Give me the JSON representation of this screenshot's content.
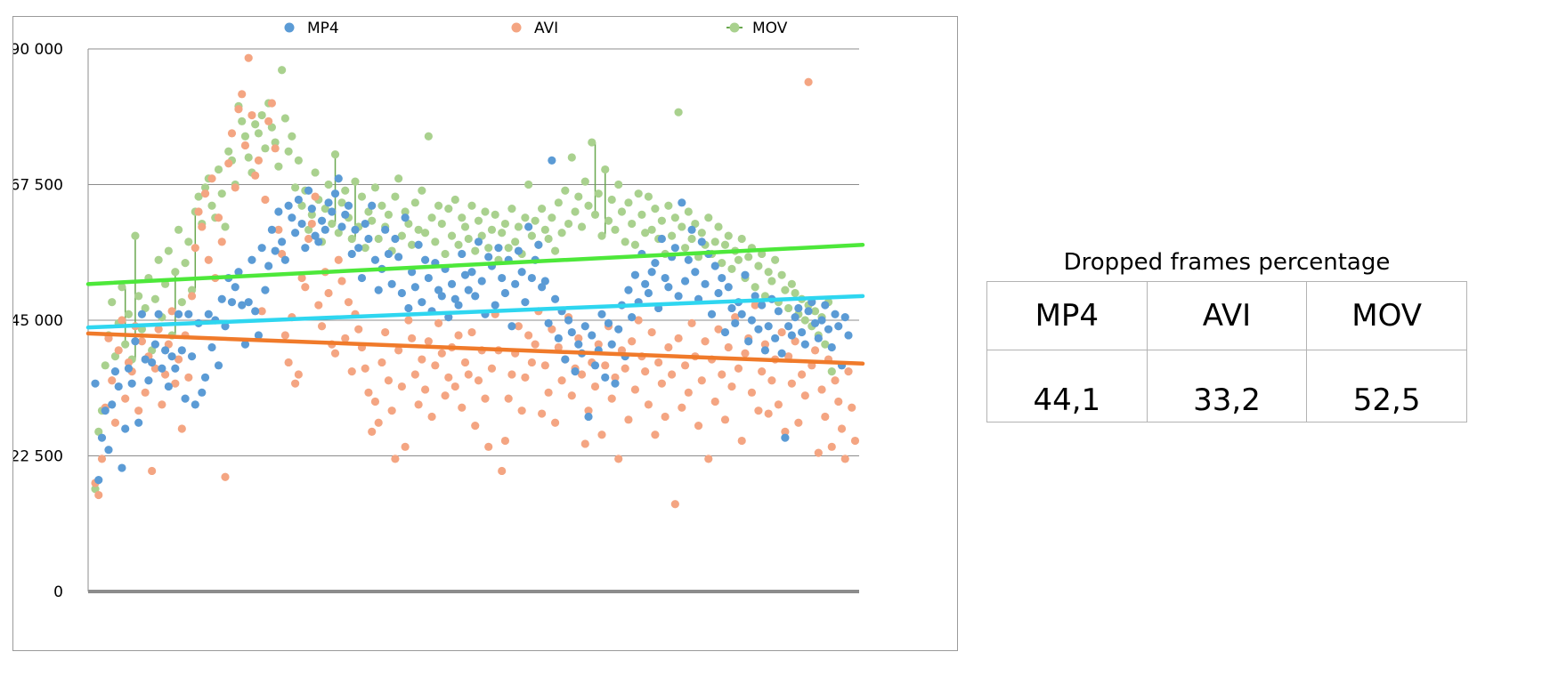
{
  "chart_data": {
    "type": "scatter",
    "title": "",
    "xlabel": "",
    "ylabel": "",
    "ylim": [
      0,
      90000
    ],
    "yticks": [
      0,
      22500,
      45000,
      67500,
      90000
    ],
    "ytick_labels": [
      "0",
      "22 500",
      "45 000",
      "67 500",
      "90 000"
    ],
    "grid": true,
    "legend_position": "top",
    "series": [
      {
        "name": "MP4",
        "color": "#5b9bd5",
        "trend_color": "#2ed6f0",
        "trend": [
          43800,
          49000
        ],
        "marker": "dot",
        "values": [
          34500,
          18500,
          25500,
          30000,
          23500,
          31000,
          36500,
          34000,
          20500,
          27000,
          37000,
          34500,
          41500,
          28000,
          46000,
          38500,
          35000,
          38000,
          41000,
          46000,
          37000,
          40000,
          34000,
          39000,
          37000,
          46000,
          40000,
          32000,
          46000,
          39000,
          31000,
          44500,
          33000,
          35500,
          46000,
          40500,
          45000,
          37500,
          48500,
          44000,
          52000,
          48000,
          50500,
          53000,
          47500,
          41000,
          48000,
          55000,
          46500,
          42500,
          57000,
          50000,
          54000,
          60000,
          56500,
          63000,
          58000,
          55000,
          64000,
          62000,
          59500,
          65000,
          61000,
          57000,
          66500,
          63500,
          59000,
          58000,
          61500,
          60000,
          64500,
          63000,
          66000,
          68500,
          60500,
          62500,
          64000,
          56000,
          60000,
          57000,
          52000,
          61000,
          58500,
          64000,
          55000,
          50000,
          53500,
          60000,
          56000,
          51000,
          58500,
          55500,
          49500,
          62000,
          47000,
          53000,
          50500,
          57500,
          48000,
          55000,
          52000,
          46500,
          54500,
          50000,
          49000,
          53500,
          45500,
          51000,
          48500,
          47500,
          56000,
          52500,
          50000,
          53000,
          49000,
          58000,
          51500,
          46000,
          55500,
          54000,
          47500,
          57000,
          52000,
          49500,
          55000,
          44000,
          51000,
          56500,
          53000,
          48000,
          60500,
          52000,
          55000,
          57500,
          50500,
          51500,
          44500,
          71500,
          48500,
          42000,
          46500,
          38500,
          45000,
          43000,
          36500,
          41000,
          39500,
          44000,
          29000,
          42500,
          37500,
          40000,
          46000,
          35500,
          44500,
          41000,
          34500,
          43500,
          47500,
          39000,
          50000,
          45500,
          52500,
          48000,
          56000,
          51000,
          49500,
          53000,
          54500,
          47000,
          58500,
          52000,
          50500,
          55500,
          57000,
          49000,
          64500,
          51500,
          55000,
          60000,
          53000,
          48500,
          58000,
          51000,
          56000,
          46000,
          54000,
          49500,
          52000,
          43000,
          50500,
          47000,
          44500,
          48000,
          46000,
          52500,
          41500,
          45000,
          49000,
          43500,
          47500,
          40000,
          44000,
          48500,
          42000,
          46500,
          39500,
          25500,
          44000,
          42500,
          45500,
          47000,
          43000,
          41000,
          46500,
          48000,
          44500,
          42000,
          45000,
          47500,
          43500,
          40500,
          46000,
          44000,
          37500,
          45500,
          42500
        ]
      },
      {
        "name": "AVI",
        "color": "#f4a582",
        "trend_color": "#f07a2a",
        "trend": [
          42800,
          37800
        ],
        "marker": "dot",
        "values": [
          18000,
          16000,
          22000,
          30500,
          42000,
          35000,
          28000,
          40000,
          45000,
          32000,
          38000,
          36500,
          44000,
          30000,
          41500,
          33000,
          39000,
          20000,
          37000,
          43500,
          31000,
          36000,
          41000,
          46500,
          34500,
          38500,
          27000,
          42500,
          35500,
          49000,
          57000,
          63000,
          60500,
          66000,
          55000,
          68500,
          52000,
          62000,
          58000,
          19000,
          71000,
          76000,
          67000,
          80000,
          82500,
          74000,
          88500,
          79000,
          69000,
          71500,
          46500,
          65000,
          78000,
          81000,
          73500,
          60000,
          56000,
          42500,
          38000,
          45500,
          34500,
          36000,
          52000,
          50500,
          58500,
          61000,
          65500,
          47500,
          44000,
          53000,
          49500,
          41000,
          39500,
          55000,
          51500,
          42000,
          48000,
          36500,
          46000,
          43500,
          40500,
          37000,
          33000,
          26500,
          31500,
          28000,
          38000,
          43000,
          35000,
          30000,
          22000,
          40000,
          34000,
          24000,
          45000,
          42000,
          36000,
          31000,
          38500,
          33500,
          41500,
          29000,
          37500,
          44500,
          39500,
          32500,
          35500,
          40500,
          34000,
          42500,
          30500,
          38000,
          36000,
          43000,
          27500,
          35000,
          40000,
          32000,
          24000,
          37000,
          46000,
          40000,
          20000,
          25000,
          32000,
          36000,
          39500,
          44000,
          30000,
          35500,
          42500,
          38000,
          41000,
          46500,
          29500,
          37500,
          33000,
          43500,
          28000,
          40500,
          35000,
          38500,
          45500,
          32500,
          37000,
          42000,
          36000,
          24500,
          30000,
          38000,
          34000,
          41000,
          26000,
          37500,
          44000,
          32000,
          35500,
          22000,
          40000,
          37000,
          28500,
          41500,
          33500,
          45000,
          39000,
          36500,
          31000,
          43000,
          26000,
          38000,
          34500,
          29000,
          40500,
          36000,
          14500,
          42000,
          30500,
          37500,
          33000,
          44500,
          39000,
          27500,
          35000,
          41500,
          22000,
          38500,
          31500,
          43500,
          36000,
          28500,
          40500,
          34000,
          45500,
          37000,
          25000,
          39500,
          42000,
          33000,
          47500,
          30000,
          36500,
          41000,
          29500,
          35000,
          38500,
          31000,
          43000,
          26500,
          39000,
          34500,
          41500,
          28000,
          36000,
          32500,
          84500,
          37500,
          40000,
          23000,
          33500,
          29000,
          38500,
          24000,
          35000,
          31500,
          27000,
          22000,
          36500,
          30500,
          25000
        ]
      },
      {
        "name": "MOV",
        "color": "#a9d18e",
        "trend_color": "#4de83a",
        "trend": [
          51000,
          57500
        ],
        "marker": "dot-line",
        "values": [
          17000,
          26500,
          30000,
          37500,
          42500,
          48000,
          39000,
          44500,
          50500,
          41000,
          46000,
          38500,
          59000,
          49000,
          43500,
          47000,
          52000,
          40000,
          48500,
          55000,
          45500,
          51000,
          56500,
          42500,
          53000,
          60000,
          48000,
          54500,
          58000,
          50000,
          63000,
          65500,
          61000,
          67000,
          68500,
          64000,
          62000,
          70000,
          66000,
          60500,
          73000,
          71500,
          67500,
          80500,
          78000,
          75500,
          72000,
          69500,
          77500,
          76000,
          79000,
          73500,
          81000,
          77000,
          74500,
          70500,
          86500,
          78500,
          73000,
          75500,
          67000,
          71500,
          64000,
          66500,
          60000,
          62500,
          69500,
          65000,
          58000,
          63500,
          67500,
          61000,
          72500,
          59500,
          64500,
          66500,
          62000,
          58500,
          68000,
          60500,
          65500,
          57000,
          63000,
          61500,
          67000,
          58500,
          64000,
          60500,
          62500,
          56500,
          65500,
          68500,
          59000,
          63000,
          61000,
          57500,
          64500,
          60000,
          66500,
          59500,
          75500,
          62000,
          58000,
          64000,
          61000,
          56000,
          63500,
          59000,
          65000,
          57500,
          62000,
          60500,
          58500,
          64000,
          56500,
          61500,
          59000,
          63000,
          57000,
          60000,
          62500,
          55000,
          59500,
          61000,
          57000,
          63500,
          58000,
          60500,
          56000,
          62000,
          67500,
          59000,
          61500,
          57500,
          63500,
          60000,
          58500,
          62000,
          56500,
          64500,
          59500,
          66500,
          61000,
          72000,
          63000,
          65500,
          60500,
          68000,
          64000,
          74500,
          62500,
          66000,
          59000,
          70000,
          61500,
          65000,
          60000,
          67500,
          63000,
          58000,
          64500,
          61000,
          57500,
          66000,
          62500,
          59500,
          65500,
          60000,
          63500,
          58500,
          61500,
          56000,
          64000,
          59000,
          62000,
          79500,
          60500,
          57000,
          63000,
          58500,
          61000,
          55500,
          59500,
          57500,
          62000,
          56000,
          58000,
          60500,
          54500,
          57500,
          59000,
          53500,
          56500,
          55000,
          58500,
          52000,
          55500,
          57000,
          50500,
          54000,
          56000,
          49000,
          53000,
          51500,
          55000,
          48000,
          52500,
          50000,
          47000,
          51000,
          49500,
          46000,
          48500,
          45000,
          47500,
          44000,
          46500,
          42500,
          45500,
          41000,
          48000,
          36500
        ]
      }
    ]
  },
  "table": {
    "title": "Dropped frames percentage",
    "headers": [
      "MP4",
      "AVI",
      "MOV"
    ],
    "values": [
      "44,1",
      "33,2",
      "52,5"
    ]
  }
}
